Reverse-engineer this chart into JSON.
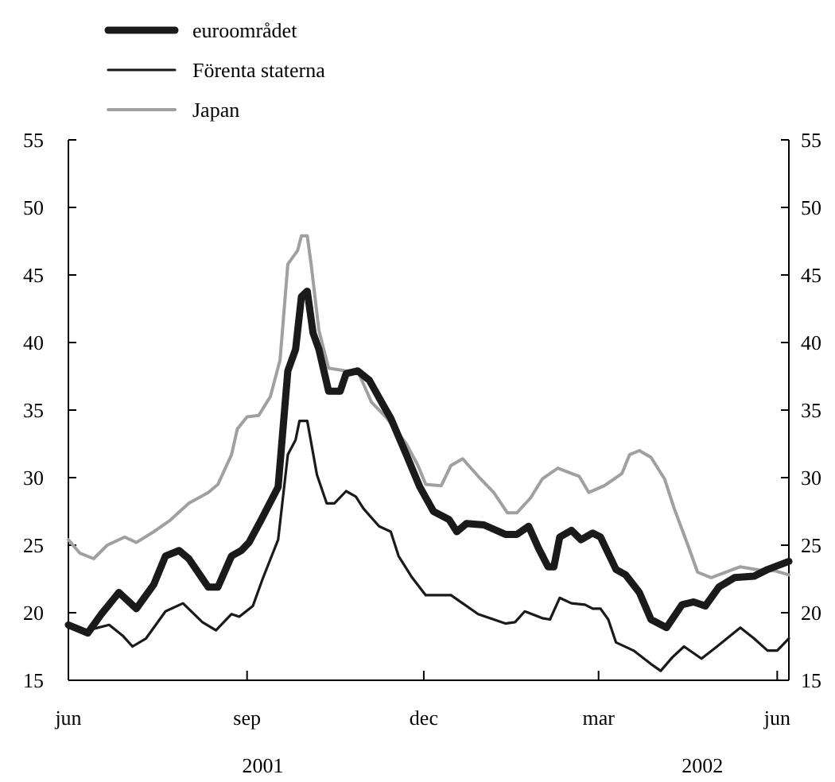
{
  "chart_data": {
    "type": "line",
    "legend": "top left",
    "grid": false,
    "line_style": "solid",
    "marker": "none",
    "xlim": [
      "2001-06-01",
      "2002-06-07"
    ],
    "xticks": [
      {
        "value": "2001-06-01",
        "label": "jun"
      },
      {
        "value": "2001-09-01",
        "label": "sep"
      },
      {
        "value": "2001-12-01",
        "label": "dec"
      },
      {
        "value": "2002-03-01",
        "label": "mar"
      },
      {
        "value": "2002-06-01",
        "label": "jun"
      }
    ],
    "ylim": [
      15,
      55
    ],
    "yticks": [
      15,
      20,
      25,
      30,
      35,
      40,
      45,
      50,
      55
    ],
    "y2lim": [
      15,
      55
    ],
    "y2ticks": [
      15,
      20,
      25,
      30,
      35,
      40,
      45,
      50,
      55
    ],
    "annotations": [
      "2001",
      "2002"
    ],
    "series": [
      {
        "name": "euroområdet",
        "color": "#1a1a1a",
        "x": [
          "2001-06-01",
          "2001-06-11",
          "2001-06-18",
          "2001-06-27",
          "2001-07-06",
          "2001-07-15",
          "2001-07-21",
          "2001-07-28",
          "2001-08-02",
          "2001-08-12",
          "2001-08-17",
          "2001-08-24",
          "2001-08-29",
          "2001-09-02",
          "2001-09-08",
          "2001-09-17",
          "2001-09-22",
          "2001-09-26",
          "2001-09-29",
          "2001-10-02",
          "2001-10-05",
          "2001-10-08",
          "2001-10-13",
          "2001-10-19",
          "2001-10-22",
          "2001-10-28",
          "2001-11-03",
          "2001-11-10",
          "2001-11-14",
          "2001-11-22",
          "2001-11-29",
          "2001-12-06",
          "2001-12-14",
          "2001-12-18",
          "2001-12-23",
          "2002-01-01",
          "2002-01-12",
          "2002-01-18",
          "2002-01-24",
          "2002-01-29",
          "2002-02-03",
          "2002-02-06",
          "2002-02-09",
          "2002-02-15",
          "2002-02-20",
          "2002-02-26",
          "2002-03-02",
          "2002-03-10",
          "2002-03-15",
          "2002-03-22",
          "2002-03-28",
          "2002-04-05",
          "2002-04-13",
          "2002-04-19",
          "2002-04-25",
          "2002-05-02",
          "2002-05-10",
          "2002-05-20",
          "2002-05-27",
          "2002-06-07"
        ],
        "values": [
          19.1,
          18.5,
          19.9,
          21.5,
          20.3,
          22.1,
          24.2,
          24.6,
          24.0,
          21.9,
          21.9,
          24.2,
          24.6,
          25.2,
          26.8,
          29.3,
          37.9,
          39.5,
          43.4,
          43.8,
          40.7,
          39.5,
          36.4,
          36.4,
          37.7,
          37.9,
          37.2,
          35.4,
          34.4,
          31.7,
          29.3,
          27.5,
          26.9,
          26.0,
          26.6,
          26.5,
          25.8,
          25.8,
          26.4,
          24.8,
          23.4,
          23.4,
          25.6,
          26.1,
          25.4,
          25.9,
          25.6,
          23.2,
          22.8,
          21.5,
          19.5,
          18.9,
          20.6,
          20.8,
          20.5,
          21.9,
          22.6,
          22.7,
          23.2,
          23.8
        ]
      },
      {
        "name": "Förenta staterna",
        "color": "#1a1a1a",
        "x": [
          "2001-06-01",
          "2001-06-11",
          "2001-06-22",
          "2001-06-29",
          "2001-07-04",
          "2001-07-11",
          "2001-07-21",
          "2001-07-30",
          "2001-08-09",
          "2001-08-16",
          "2001-08-24",
          "2001-08-28",
          "2001-09-04",
          "2001-09-09",
          "2001-09-17",
          "2001-09-22",
          "2001-09-26",
          "2001-09-28",
          "2001-10-02",
          "2001-10-07",
          "2001-10-12",
          "2001-10-16",
          "2001-10-22",
          "2001-10-27",
          "2001-10-31",
          "2001-11-08",
          "2001-11-14",
          "2001-11-18",
          "2001-11-25",
          "2001-12-02",
          "2001-12-08",
          "2001-12-15",
          "2001-12-21",
          "2001-12-29",
          "2002-01-12",
          "2002-01-17",
          "2002-01-22",
          "2002-01-31",
          "2002-02-04",
          "2002-02-09",
          "2002-02-15",
          "2002-02-22",
          "2002-02-26",
          "2002-03-02",
          "2002-03-06",
          "2002-03-10",
          "2002-03-19",
          "2002-03-28",
          "2002-04-02",
          "2002-04-08",
          "2002-04-14",
          "2002-04-23",
          "2002-05-01",
          "2002-05-13",
          "2002-05-20",
          "2002-05-27",
          "2002-06-01",
          "2002-06-07"
        ],
        "values": [
          18.9,
          18.7,
          19.1,
          18.3,
          17.5,
          18.1,
          20.1,
          20.7,
          19.3,
          18.7,
          19.9,
          19.7,
          20.5,
          22.5,
          25.4,
          31.7,
          32.8,
          34.2,
          34.2,
          30.2,
          28.1,
          28.1,
          29.0,
          28.6,
          27.7,
          26.4,
          26.0,
          24.2,
          22.6,
          21.3,
          21.3,
          21.3,
          20.7,
          19.9,
          19.2,
          19.3,
          20.1,
          19.6,
          19.5,
          21.1,
          20.7,
          20.6,
          20.3,
          20.3,
          19.5,
          17.8,
          17.2,
          16.2,
          15.7,
          16.7,
          17.5,
          16.6,
          17.5,
          18.9,
          18.1,
          17.2,
          17.2,
          18.1
        ]
      },
      {
        "name": "Japan",
        "color": "#a0a0a0",
        "x": [
          "2001-06-01",
          "2001-06-07",
          "2001-06-14",
          "2001-06-21",
          "2001-06-30",
          "2001-07-06",
          "2001-07-15",
          "2001-07-23",
          "2001-08-02",
          "2001-08-12",
          "2001-08-17",
          "2001-08-24",
          "2001-08-27",
          "2001-09-01",
          "2001-09-07",
          "2001-09-13",
          "2001-09-18",
          "2001-09-22",
          "2001-09-27",
          "2001-09-29",
          "2001-10-02",
          "2001-10-04",
          "2001-10-08",
          "2001-10-13",
          "2001-10-22",
          "2001-10-28",
          "2001-11-04",
          "2001-11-12",
          "2001-11-22",
          "2001-11-28",
          "2001-12-02",
          "2001-12-10",
          "2001-12-15",
          "2001-12-21",
          "2001-12-29",
          "2002-01-06",
          "2002-01-13",
          "2002-01-18",
          "2002-01-25",
          "2002-01-31",
          "2002-02-08",
          "2002-02-19",
          "2002-02-24",
          "2002-03-04",
          "2002-03-13",
          "2002-03-17",
          "2002-03-22",
          "2002-03-28",
          "2002-04-04",
          "2002-04-09",
          "2002-04-16",
          "2002-04-21",
          "2002-04-28",
          "2002-05-13",
          "2002-05-25",
          "2002-05-31",
          "2002-06-07"
        ],
        "values": [
          25.4,
          24.4,
          24.0,
          25.0,
          25.6,
          25.2,
          26.0,
          26.8,
          28.1,
          28.9,
          29.5,
          31.7,
          33.6,
          34.5,
          34.6,
          36.0,
          38.7,
          45.8,
          46.8,
          47.9,
          47.9,
          45.8,
          40.9,
          38.1,
          37.9,
          37.9,
          35.6,
          34.4,
          32.5,
          30.9,
          29.5,
          29.4,
          30.9,
          31.4,
          30.1,
          28.9,
          27.4,
          27.4,
          28.5,
          29.9,
          30.7,
          30.1,
          28.9,
          29.4,
          30.3,
          31.7,
          32.0,
          31.5,
          29.9,
          27.7,
          25.0,
          23.0,
          22.6,
          23.4,
          23.1,
          23.1,
          22.8
        ]
      }
    ]
  }
}
